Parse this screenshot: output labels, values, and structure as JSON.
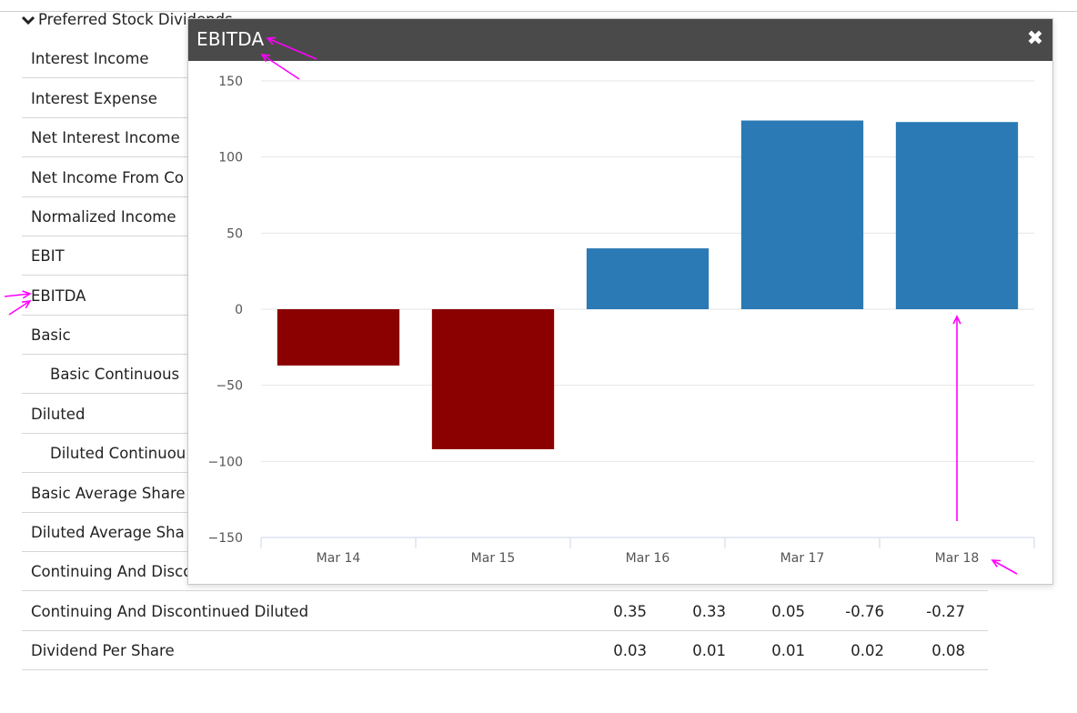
{
  "table": {
    "rows": [
      {
        "label": "Preferred Stock Dividends",
        "expandable": true
      },
      {
        "label": "Interest Income"
      },
      {
        "label": "Interest Expense"
      },
      {
        "label": "Net Interest Income"
      },
      {
        "label": "Net Income From Co"
      },
      {
        "label": "Normalized Income"
      },
      {
        "label": "EBIT"
      },
      {
        "label": "EBITDA"
      },
      {
        "label": "Basic"
      },
      {
        "label": "Basic Continuous",
        "indent": true
      },
      {
        "label": "Diluted"
      },
      {
        "label": "Diluted Continuou",
        "indent": true
      },
      {
        "label": "Basic Average Share"
      },
      {
        "label": "Diluted Average Sha"
      },
      {
        "label": "Continuing And Disco"
      },
      {
        "label": "Continuing And Discontinued Diluted",
        "values": [
          "0.35",
          "0.33",
          "0.05",
          "-0.76",
          "-0.27"
        ]
      },
      {
        "label": "Dividend Per Share",
        "values": [
          "0.03",
          "0.01",
          "0.01",
          "0.02",
          "0.08"
        ]
      }
    ]
  },
  "modal": {
    "title": "EBITDA",
    "close_icon": "close-icon"
  },
  "chart_data": {
    "type": "bar",
    "title": "EBITDA",
    "categories": [
      "Mar 14",
      "Mar 15",
      "Mar 16",
      "Mar 17",
      "Mar 18"
    ],
    "values": [
      -37,
      -92,
      40,
      124,
      123
    ],
    "ylim": [
      -150,
      150
    ],
    "yticks": [
      150,
      100,
      50,
      0,
      -50,
      -100,
      -150
    ],
    "ytick_labels": [
      "150",
      "100",
      "50",
      "0",
      "−50",
      "−100",
      "−150"
    ],
    "positive_color": "#2b7ab5",
    "negative_color": "#8b0000",
    "grid": true,
    "xlabel": "",
    "ylabel": ""
  },
  "annotations": {
    "arrow_color": "#ff00ff"
  }
}
